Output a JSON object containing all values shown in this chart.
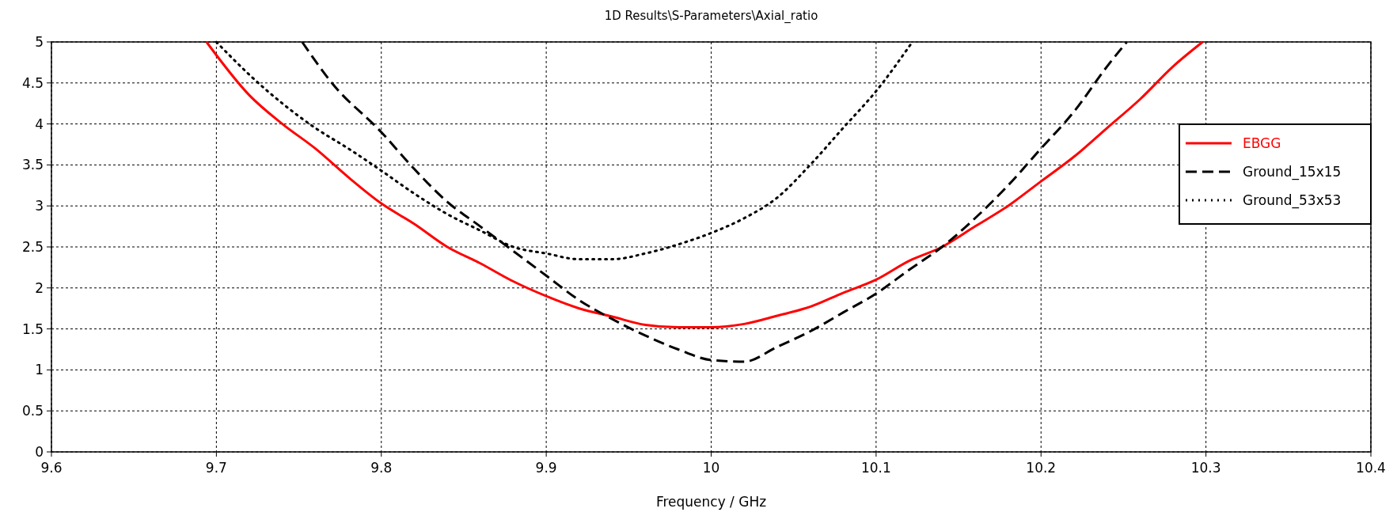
{
  "chart_data": {
    "type": "line",
    "title": "1D Results\\S-Parameters\\Axial_ratio",
    "xlabel": "Frequency / GHz",
    "xlim": [
      9.6,
      10.4
    ],
    "xticks": [
      9.6,
      9.7,
      9.8,
      9.9,
      10,
      10.1,
      10.2,
      10.3,
      10.4
    ],
    "ylim": [
      0,
      5
    ],
    "yticks": [
      0,
      0.5,
      1,
      1.5,
      2,
      2.5,
      3,
      3.5,
      4,
      4.5,
      5
    ],
    "grid": true,
    "legend": "right",
    "series": [
      {
        "name": "EBGG",
        "color": "#ff0000",
        "line_style": "solid",
        "x": [
          9.694,
          9.72,
          9.74,
          9.76,
          9.78,
          9.8,
          9.82,
          9.84,
          9.86,
          9.88,
          9.9,
          9.92,
          9.94,
          9.96,
          9.98,
          10.0,
          10.02,
          10.04,
          10.06,
          10.08,
          10.1,
          10.12,
          10.14,
          10.16,
          10.18,
          10.2,
          10.22,
          10.24,
          10.26,
          10.28,
          10.298
        ],
        "values": [
          5,
          4.35,
          4.0,
          3.7,
          3.35,
          3.03,
          2.78,
          2.5,
          2.3,
          2.08,
          1.9,
          1.75,
          1.65,
          1.55,
          1.52,
          1.52,
          1.56,
          1.66,
          1.77,
          1.94,
          2.1,
          2.33,
          2.5,
          2.75,
          3.0,
          3.3,
          3.6,
          3.95,
          4.3,
          4.7,
          5
        ]
      },
      {
        "name": "Ground_15x15",
        "color": "#000000",
        "line_style": "dashed",
        "x": [
          9.752,
          9.77,
          9.8,
          9.82,
          9.84,
          9.86,
          9.88,
          9.9,
          9.92,
          9.94,
          9.96,
          9.98,
          10.0,
          10.02,
          10.04,
          10.06,
          10.08,
          10.1,
          10.12,
          10.14,
          10.16,
          10.18,
          10.2,
          10.22,
          10.24,
          10.252
        ],
        "values": [
          5,
          4.5,
          3.9,
          3.45,
          3.05,
          2.75,
          2.45,
          2.15,
          1.85,
          1.62,
          1.42,
          1.25,
          1.12,
          1.1,
          1.28,
          1.47,
          1.7,
          1.93,
          2.22,
          2.5,
          2.85,
          3.25,
          3.7,
          4.15,
          4.7,
          5
        ]
      },
      {
        "name": "Ground_53x53",
        "color": "#000000",
        "line_style": "dotted",
        "x": [
          9.7,
          9.72,
          9.74,
          9.76,
          9.78,
          9.8,
          9.82,
          9.84,
          9.86,
          9.88,
          9.9,
          9.92,
          9.94,
          9.96,
          9.98,
          10.0,
          10.02,
          10.04,
          10.06,
          10.08,
          10.1,
          10.122
        ],
        "values": [
          5,
          4.6,
          4.25,
          3.95,
          3.7,
          3.43,
          3.15,
          2.9,
          2.7,
          2.5,
          2.42,
          2.35,
          2.35,
          2.42,
          2.53,
          2.67,
          2.85,
          3.1,
          3.5,
          3.95,
          4.4,
          5
        ]
      }
    ]
  }
}
